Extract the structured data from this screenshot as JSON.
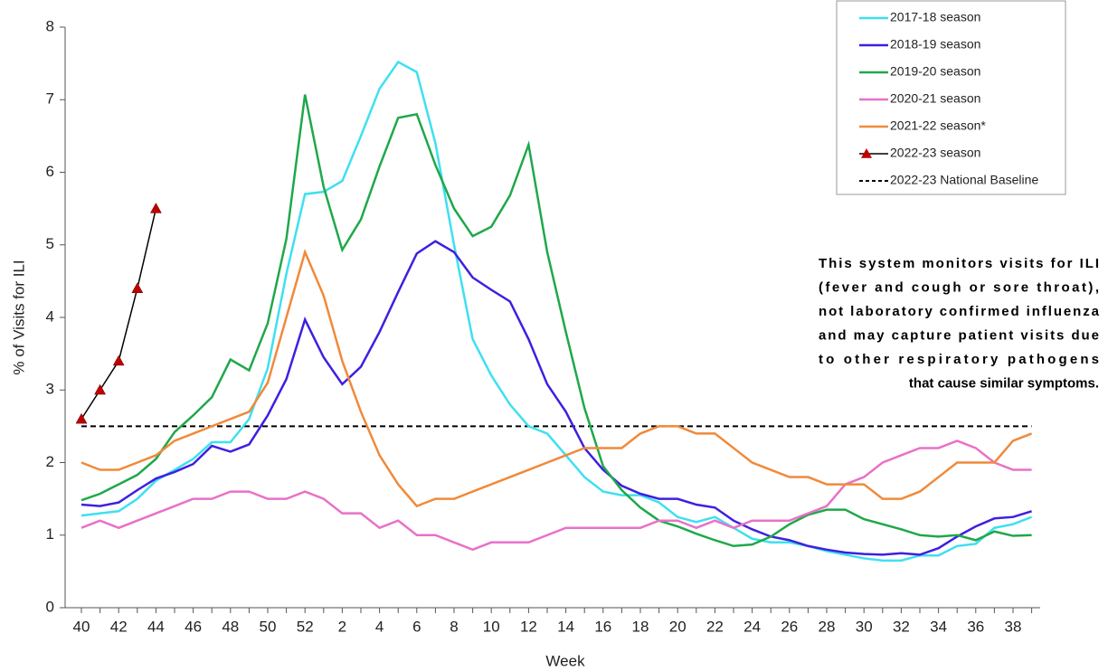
{
  "chart_data": {
    "type": "line",
    "ylabel": "% of Visits for ILI",
    "xlabel": "Week",
    "categories": [
      40,
      null,
      42,
      null,
      44,
      null,
      46,
      null,
      48,
      null,
      50,
      null,
      52,
      null,
      2,
      null,
      4,
      null,
      6,
      null,
      8,
      null,
      10,
      null,
      12,
      null,
      14,
      null,
      16,
      null,
      18,
      null,
      20,
      null,
      22,
      null,
      24,
      null,
      26,
      null,
      28,
      null,
      30,
      null,
      32,
      null,
      34,
      null,
      36,
      null,
      38,
      null
    ],
    "ylim": [
      0,
      8
    ],
    "yticks": [
      0,
      1,
      2,
      3,
      4,
      5,
      6,
      7,
      8
    ],
    "grid": false,
    "legend": "top-right",
    "series": [
      {
        "name": "2017-18 season",
        "color": "#3ee0f0",
        "values": [
          1.27,
          1.3,
          1.33,
          1.5,
          1.75,
          1.9,
          2.05,
          2.28,
          2.28,
          2.6,
          3.3,
          4.6,
          5.7,
          5.73,
          5.88,
          6.5,
          7.15,
          7.52,
          7.38,
          6.4,
          5.0,
          3.7,
          3.2,
          2.8,
          2.5,
          2.4,
          2.1,
          1.8,
          1.6,
          1.55,
          1.55,
          1.45,
          1.25,
          1.18,
          1.25,
          1.1,
          0.95,
          0.9,
          0.9,
          0.85,
          0.78,
          0.73,
          0.68,
          0.65,
          0.65,
          0.72,
          0.72,
          0.85,
          0.88,
          1.1,
          1.15,
          1.25
        ]
      },
      {
        "name": "2018-19 season",
        "color": "#3f1fe0",
        "values": [
          1.42,
          1.4,
          1.45,
          1.62,
          1.78,
          1.87,
          1.98,
          2.23,
          2.15,
          2.25,
          2.65,
          3.15,
          3.97,
          3.45,
          3.08,
          3.32,
          3.8,
          4.35,
          4.88,
          5.05,
          4.9,
          4.55,
          4.38,
          4.22,
          3.7,
          3.08,
          2.7,
          2.2,
          1.9,
          1.68,
          1.57,
          1.5,
          1.5,
          1.42,
          1.38,
          1.2,
          1.08,
          0.98,
          0.93,
          0.85,
          0.8,
          0.76,
          0.74,
          0.73,
          0.75,
          0.73,
          0.82,
          0.98,
          1.12,
          1.23,
          1.25,
          1.33
        ]
      },
      {
        "name": "2019-20 season",
        "color": "#1fa84a",
        "values": [
          1.48,
          1.57,
          1.7,
          1.83,
          2.05,
          2.42,
          2.65,
          2.9,
          3.42,
          3.27,
          3.92,
          5.08,
          7.07,
          5.8,
          4.93,
          5.35,
          6.08,
          6.75,
          6.8,
          6.1,
          5.5,
          5.12,
          5.25,
          5.68,
          6.38,
          4.9,
          3.8,
          2.75,
          1.95,
          1.62,
          1.38,
          1.2,
          1.12,
          1.02,
          0.93,
          0.85,
          0.87,
          0.98,
          1.15,
          1.28,
          1.35,
          1.35,
          1.22,
          1.15,
          1.08,
          1.0,
          0.98,
          1.0,
          0.93,
          1.05,
          0.99,
          1.0
        ]
      },
      {
        "name": "2020-21 season",
        "color": "#e871c8",
        "values": [
          1.1,
          1.2,
          1.1,
          1.2,
          1.3,
          1.4,
          1.5,
          1.5,
          1.6,
          1.6,
          1.5,
          1.5,
          1.6,
          1.5,
          1.3,
          1.3,
          1.1,
          1.2,
          1.0,
          1.0,
          0.9,
          0.8,
          0.9,
          0.9,
          0.9,
          1.0,
          1.1,
          1.1,
          1.1,
          1.1,
          1.1,
          1.2,
          1.2,
          1.1,
          1.2,
          1.1,
          1.2,
          1.2,
          1.2,
          1.3,
          1.4,
          1.7,
          1.8,
          2.0,
          2.1,
          2.2,
          2.2,
          2.3,
          2.2,
          2.0,
          1.9,
          1.9
        ]
      },
      {
        "name": "2021-22 season*",
        "color": "#f08a3a",
        "values": [
          2.0,
          1.9,
          1.9,
          2.0,
          2.1,
          2.3,
          2.4,
          2.5,
          2.6,
          2.7,
          3.1,
          4.0,
          4.9,
          4.3,
          3.4,
          2.7,
          2.1,
          1.7,
          1.4,
          1.5,
          1.5,
          1.6,
          1.7,
          1.8,
          1.9,
          2.0,
          2.1,
          2.2,
          2.2,
          2.2,
          2.4,
          2.5,
          2.5,
          2.4,
          2.4,
          2.2,
          2.0,
          1.9,
          1.8,
          1.8,
          1.7,
          1.7,
          1.7,
          1.5,
          1.5,
          1.6,
          1.8,
          2.0,
          2.0,
          2.0,
          2.3,
          2.4
        ]
      },
      {
        "name": "2022-23 season",
        "color": "#000000",
        "marker": "triangle",
        "marker_color": "#c00000",
        "values": [
          2.6,
          3.0,
          3.4,
          4.4,
          5.5,
          null,
          null,
          null,
          null,
          null,
          null,
          null,
          null,
          null,
          null,
          null,
          null,
          null,
          null,
          null,
          null,
          null,
          null,
          null,
          null,
          null,
          null,
          null,
          null,
          null,
          null,
          null,
          null,
          null,
          null,
          null,
          null,
          null,
          null,
          null,
          null,
          null,
          null,
          null,
          null,
          null,
          null,
          null,
          null,
          null,
          null,
          null
        ]
      }
    ],
    "baseline": {
      "name": "2022-23 National Baseline",
      "value": 2.5,
      "color": "#000000"
    },
    "annotation": [
      "This system monitors visits for ILI",
      "(fever and cough or sore throat),",
      "not laboratory confirmed influenza",
      "and may capture patient visits due",
      "to other respiratory pathogens",
      "that cause similar symptoms."
    ]
  }
}
